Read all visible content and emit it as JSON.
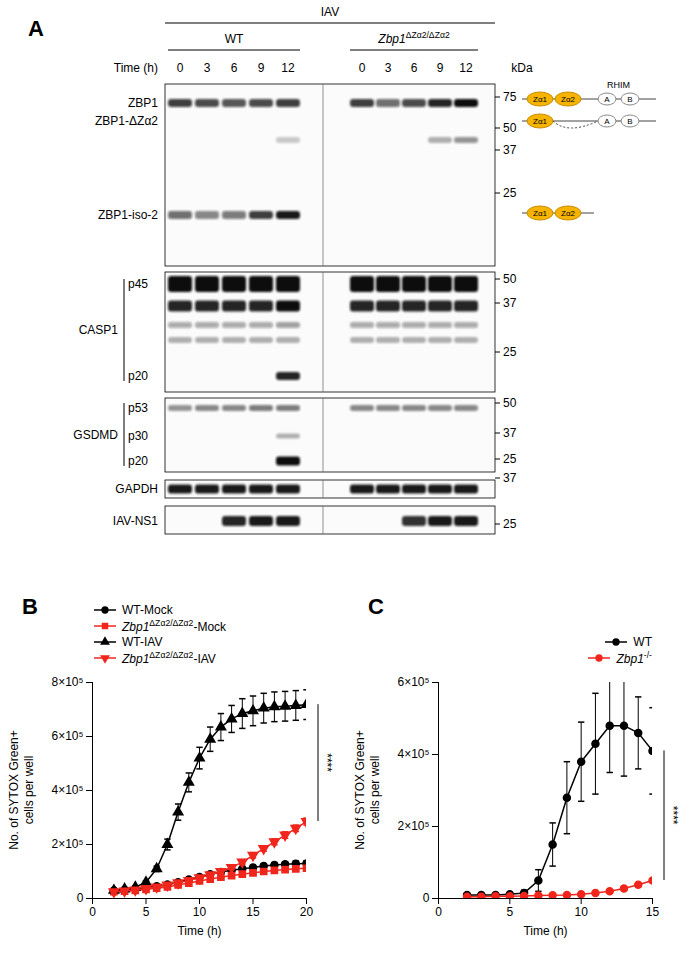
{
  "blot": {
    "title": "A",
    "treatment": "IAV",
    "groups": [
      "WT",
      "Zbp1ΔZα2/ΔZα2"
    ],
    "time_label": "Time (h)",
    "times": [
      0,
      3,
      6,
      9,
      12
    ],
    "marker_unit": "kDa",
    "panels": [
      {
        "label": null,
        "markers": [
          75,
          50,
          37,
          25
        ],
        "bands": [
          {
            "label": "ZBP1",
            "intensity": [
              [
                0.8,
                0.75,
                0.7,
                0.75,
                0.8
              ],
              [
                0.8,
                0.6,
                0.75,
                0.9,
                1.0
              ]
            ]
          },
          {
            "label": "ZBP1-ΔZα2",
            "intensity": [
              [
                0,
                0,
                0,
                0,
                0.2
              ],
              [
                0,
                0,
                0,
                0.3,
                0.45
              ]
            ]
          },
          {
            "label": "ZBP1-iso-2",
            "intensity": [
              [
                0.6,
                0.5,
                0.55,
                0.8,
                0.95
              ],
              [
                0,
                0,
                0,
                0,
                0
              ]
            ]
          }
        ]
      },
      {
        "label": "CASP1",
        "markers": [
          50,
          37,
          25
        ],
        "bands": [
          {
            "label": "p45",
            "intensity": [
              [
                1,
                1,
                1,
                1,
                1
              ],
              [
                1,
                1,
                1,
                1,
                1
              ]
            ]
          },
          {
            "label": null,
            "intensity": [
              [
                0.9,
                0.9,
                0.9,
                0.9,
                1
              ],
              [
                0.9,
                0.9,
                0.9,
                0.9,
                0.9
              ]
            ]
          },
          {
            "label": null,
            "intensity": [
              [
                0.35,
                0.35,
                0.35,
                0.35,
                0.4
              ],
              [
                0.35,
                0.35,
                0.35,
                0.35,
                0.35
              ]
            ]
          },
          {
            "label": null,
            "intensity": [
              [
                0.3,
                0.3,
                0.3,
                0.3,
                0.3
              ],
              [
                0.3,
                0.3,
                0.3,
                0.3,
                0.3
              ]
            ]
          },
          {
            "label": "p20",
            "intensity": [
              [
                0,
                0,
                0,
                0,
                0.9
              ],
              [
                0,
                0,
                0,
                0,
                0
              ]
            ]
          }
        ]
      },
      {
        "label": "GSDMD",
        "markers": [
          50,
          37,
          25
        ],
        "bands": [
          {
            "label": "p53",
            "intensity": [
              [
                0.45,
                0.5,
                0.5,
                0.55,
                0.55
              ],
              [
                0.5,
                0.5,
                0.5,
                0.5,
                0.5
              ]
            ]
          },
          {
            "label": "p30",
            "intensity": [
              [
                0,
                0,
                0,
                0,
                0.3
              ],
              [
                0,
                0,
                0,
                0,
                0
              ]
            ]
          },
          {
            "label": "p20",
            "intensity": [
              [
                0,
                0,
                0,
                0,
                1
              ],
              [
                0,
                0,
                0,
                0,
                0
              ]
            ]
          }
        ]
      },
      {
        "label": null,
        "markers": [
          37
        ],
        "bands": [
          {
            "label": "GAPDH",
            "intensity": [
              [
                0.95,
                0.95,
                0.95,
                0.95,
                0.95
              ],
              [
                0.95,
                0.95,
                0.95,
                0.95,
                0.95
              ]
            ]
          }
        ]
      },
      {
        "label": null,
        "markers": [
          25
        ],
        "bands": [
          {
            "label": "IAV-NS1",
            "intensity": [
              [
                0,
                0,
                0.9,
                0.95,
                0.95
              ],
              [
                0,
                0,
                0.85,
                0.95,
                0.95
              ]
            ]
          }
        ]
      }
    ],
    "domain_diagrams": {
      "motif": "RHIM",
      "proteins": [
        [
          "Zα1",
          "Zα2",
          "A",
          "B"
        ],
        [
          "Zα1",
          null,
          "A",
          "B"
        ],
        [
          "Zα1",
          "Zα2"
        ]
      ]
    }
  },
  "chart_data": [
    {
      "type": "line",
      "title": "B",
      "legend": "top-left",
      "xlabel": "Time (h)",
      "ylabel": "No. of SYTOX Green+\ncells per well",
      "annotation": "****",
      "x": [
        2,
        3,
        4,
        5,
        6,
        7,
        8,
        9,
        10,
        11,
        12,
        13,
        14,
        15,
        16,
        17,
        18,
        19,
        20
      ],
      "xlim": [
        0,
        20
      ],
      "xticks": [
        0,
        5,
        10,
        15,
        20
      ],
      "ylim": [
        0,
        800000
      ],
      "yticks": [
        0,
        {
          "value": 200000,
          "label": "2×10⁵"
        },
        {
          "value": 400000,
          "label": "4×10⁵"
        },
        {
          "value": 600000,
          "label": "6×10⁵"
        },
        {
          "value": 800000,
          "label": "8×10⁵"
        }
      ],
      "series": [
        {
          "name": "WT-Mock",
          "color": "#000000",
          "marker": "circle",
          "values": [
            30000,
            32000,
            36000,
            40000,
            45000,
            52000,
            60000,
            70000,
            80000,
            90000,
            98000,
            105000,
            110000,
            115000,
            120000,
            124000,
            127000,
            129000,
            130000
          ],
          "errors": [
            3000,
            3000,
            3000,
            4000,
            4000,
            5000,
            5000,
            6000,
            6000,
            7000,
            7000,
            8000,
            8000,
            8000,
            9000,
            9000,
            9000,
            10000,
            10000
          ]
        },
        {
          "name": "Zbp1ΔZα2/ΔZα2-Mock",
          "color": "#f0261d",
          "marker": "square",
          "values": [
            25000,
            27000,
            30000,
            34000,
            38000,
            43000,
            50000,
            57000,
            65000,
            72000,
            79000,
            85000,
            90000,
            95000,
            100000,
            104000,
            107000,
            110000,
            112000
          ],
          "errors": [
            3000,
            3000,
            3000,
            3000,
            4000,
            4000,
            5000,
            5000,
            5000,
            6000,
            6000,
            6000,
            7000,
            7000,
            7000,
            8000,
            8000,
            8000,
            8000
          ]
        },
        {
          "name": "WT-IAV",
          "color": "#000000",
          "marker": "triangle",
          "values": [
            30000,
            35000,
            42000,
            60000,
            110000,
            200000,
            320000,
            430000,
            520000,
            590000,
            635000,
            665000,
            685000,
            695000,
            705000,
            710000,
            712000,
            715000,
            718000
          ],
          "errors": [
            3000,
            3000,
            4000,
            6000,
            10000,
            20000,
            30000,
            35000,
            40000,
            45000,
            50000,
            50000,
            55000,
            55000,
            55000,
            55000,
            55000,
            55000,
            55000
          ]
        },
        {
          "name": "Zbp1ΔZα2/ΔZα2-IAV",
          "color": "#f0261d",
          "marker": "triangle-down",
          "values": [
            25000,
            28000,
            32000,
            37000,
            43000,
            50000,
            58000,
            67000,
            77000,
            88000,
            100000,
            115000,
            135000,
            160000,
            185000,
            210000,
            235000,
            260000,
            285000
          ],
          "errors": [
            3000,
            3000,
            3000,
            4000,
            4000,
            5000,
            5000,
            6000,
            6000,
            7000,
            8000,
            8000,
            9000,
            10000,
            10000,
            11000,
            12000,
            12000,
            13000
          ]
        }
      ]
    },
    {
      "type": "line",
      "title": "C",
      "legend": "top-right",
      "xlabel": "Time (h)",
      "ylabel": "No. of SYTOX Green+\ncells per well",
      "annotation": "****",
      "x": [
        2,
        3,
        4,
        5,
        6,
        7,
        8,
        9,
        10,
        11,
        12,
        13,
        14,
        15
      ],
      "xlim": [
        0,
        15
      ],
      "xticks": [
        0,
        5,
        10,
        15
      ],
      "ylim": [
        0,
        600000
      ],
      "yticks": [
        0,
        {
          "value": 200000,
          "label": "2×10⁵"
        },
        {
          "value": 400000,
          "label": "4×10⁵"
        },
        {
          "value": 600000,
          "label": "6×10⁵"
        }
      ],
      "series": [
        {
          "name": "WT",
          "color": "#000000",
          "marker": "circle",
          "values": [
            10000,
            10000,
            10000,
            12000,
            15000,
            50000,
            150000,
            280000,
            380000,
            430000,
            480000,
            480000,
            460000,
            410000
          ],
          "errors": [
            3000,
            3000,
            3000,
            4000,
            8000,
            30000,
            60000,
            100000,
            110000,
            140000,
            130000,
            140000,
            100000,
            120000
          ]
        },
        {
          "name": "Zbp1-/-",
          "color": "#f0261d",
          "marker": "circle",
          "values": [
            5000,
            5000,
            6000,
            6000,
            7000,
            8000,
            9000,
            10000,
            12000,
            15000,
            20000,
            28000,
            38000,
            50000
          ],
          "errors": [
            2000,
            2000,
            2000,
            2000,
            2000,
            2000,
            2000,
            3000,
            3000,
            3000,
            4000,
            4000,
            5000,
            5000
          ]
        }
      ]
    }
  ]
}
